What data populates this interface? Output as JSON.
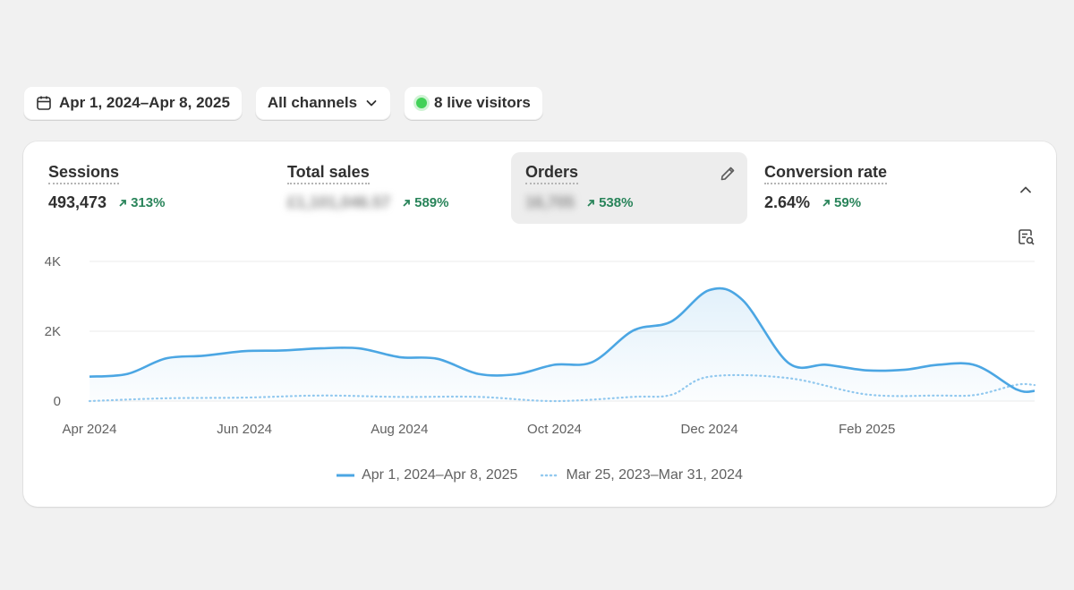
{
  "filters": {
    "date_range": "Apr 1, 2024–Apr 8, 2025",
    "channel": "All channels",
    "live_visitors": "8 live visitors"
  },
  "metrics": [
    {
      "label": "Sessions",
      "value": "493,473",
      "change": "313%",
      "blurred": false,
      "active": false
    },
    {
      "label": "Total sales",
      "value": "£1,101,046.57",
      "change": "589%",
      "blurred": true,
      "active": false
    },
    {
      "label": "Orders",
      "value": "16,705",
      "change": "538%",
      "blurred": true,
      "active": true
    },
    {
      "label": "Conversion rate",
      "value": "2.64%",
      "change": "59%",
      "blurred": false,
      "active": false
    }
  ],
  "icons": {
    "calendar": "calendar-icon",
    "chevron": "chevron-down-icon",
    "edit": "pencil-icon",
    "collapse": "chevron-up-icon",
    "insight": "chart-insight-icon",
    "trend": "arrow-up-right-icon"
  },
  "colors": {
    "series_primary": "#4ba6e3",
    "series_compare": "#93c9ef",
    "positive": "#29845a",
    "live": "#42d158"
  },
  "chart_data": {
    "type": "line",
    "y_ticks": [
      "4K",
      "2K",
      "0"
    ],
    "ylim": [
      0,
      4000
    ],
    "x_tick_labels": [
      "Apr 2024",
      "Jun 2024",
      "Aug 2024",
      "Oct 2024",
      "Dec 2024",
      "Feb 2025"
    ],
    "x_range": [
      "2024-04-01",
      "2025-04-08"
    ],
    "grid": true,
    "legend_position": "bottom-center",
    "series": [
      {
        "name": "Apr 1, 2024–Apr 8, 2025",
        "style": "solid",
        "area_fill": true,
        "points": [
          [
            "2024-04-01",
            700
          ],
          [
            "2024-04-16",
            780
          ],
          [
            "2024-05-01",
            1220
          ],
          [
            "2024-05-16",
            1300
          ],
          [
            "2024-06-01",
            1430
          ],
          [
            "2024-06-16",
            1450
          ],
          [
            "2024-07-01",
            1510
          ],
          [
            "2024-07-16",
            1510
          ],
          [
            "2024-08-01",
            1260
          ],
          [
            "2024-08-16",
            1210
          ],
          [
            "2024-09-01",
            780
          ],
          [
            "2024-09-16",
            770
          ],
          [
            "2024-10-01",
            1040
          ],
          [
            "2024-10-16",
            1120
          ],
          [
            "2024-11-01",
            2020
          ],
          [
            "2024-11-16",
            2280
          ],
          [
            "2024-12-01",
            3180
          ],
          [
            "2024-12-14",
            2900
          ],
          [
            "2025-01-01",
            1100
          ],
          [
            "2025-01-16",
            1040
          ],
          [
            "2025-02-01",
            880
          ],
          [
            "2025-02-16",
            900
          ],
          [
            "2025-03-01",
            1040
          ],
          [
            "2025-03-16",
            1020
          ],
          [
            "2025-04-01",
            330
          ],
          [
            "2025-04-08",
            290
          ]
        ]
      },
      {
        "name": "Mar 25, 2023–Mar 31, 2024",
        "style": "dotted",
        "area_fill": false,
        "points": [
          [
            "2024-04-01",
            0
          ],
          [
            "2024-05-01",
            80
          ],
          [
            "2024-06-01",
            100
          ],
          [
            "2024-07-01",
            160
          ],
          [
            "2024-08-01",
            120
          ],
          [
            "2024-09-01",
            120
          ],
          [
            "2024-10-01",
            0
          ],
          [
            "2024-11-01",
            120
          ],
          [
            "2024-11-16",
            180
          ],
          [
            "2024-12-01",
            700
          ],
          [
            "2025-01-01",
            660
          ],
          [
            "2025-02-01",
            190
          ],
          [
            "2025-03-01",
            160
          ],
          [
            "2025-03-16",
            180
          ],
          [
            "2025-04-01",
            470
          ],
          [
            "2025-04-08",
            460
          ]
        ]
      }
    ]
  }
}
